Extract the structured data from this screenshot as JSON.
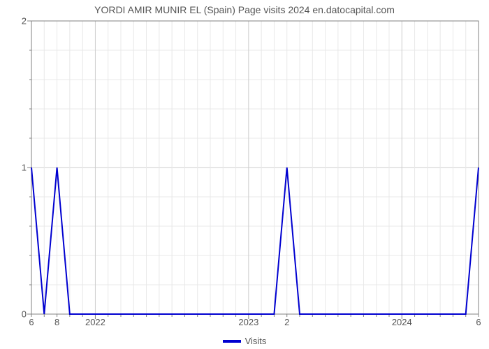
{
  "chart": {
    "type": "line",
    "title": "YORDI AMIR MUNIR EL (Spain) Page visits 2024 en.datocapital.com",
    "title_color": "#555555",
    "title_fontsize": 14,
    "background_color": "#ffffff",
    "plot_border_color": "#808080",
    "grid_color": "#cccccc",
    "minor_grid_color": "#e8e8e8",
    "line_color": "#0000d0",
    "line_width": 2,
    "x_n_points": 36,
    "y_values": [
      1,
      0,
      1,
      0,
      0,
      0,
      0,
      0,
      0,
      0,
      0,
      0,
      0,
      0,
      0,
      0,
      0,
      0,
      0,
      0,
      1,
      0,
      0,
      0,
      0,
      0,
      0,
      0,
      0,
      0,
      0,
      0,
      0,
      0,
      0,
      1
    ],
    "xlim": [
      0,
      35
    ],
    "ylim": [
      0,
      2
    ],
    "y_ticks": [
      0,
      1,
      2
    ],
    "y_minor_per_major": 5,
    "x_major_ticks": [
      {
        "idx": 5,
        "label": "2022"
      },
      {
        "idx": 17,
        "label": "2023"
      },
      {
        "idx": 29,
        "label": "2024"
      }
    ],
    "x_minor_step": 1,
    "x_extra_labels": [
      {
        "idx": 0,
        "label": "6"
      },
      {
        "idx": 2,
        "label": "8"
      },
      {
        "idx": 20,
        "label": "2"
      },
      {
        "idx": 35,
        "label": "6"
      }
    ],
    "legend": {
      "label": "Visits",
      "color": "#0000d0"
    },
    "tick_label_color": "#555555",
    "tick_label_fontsize": 13
  }
}
